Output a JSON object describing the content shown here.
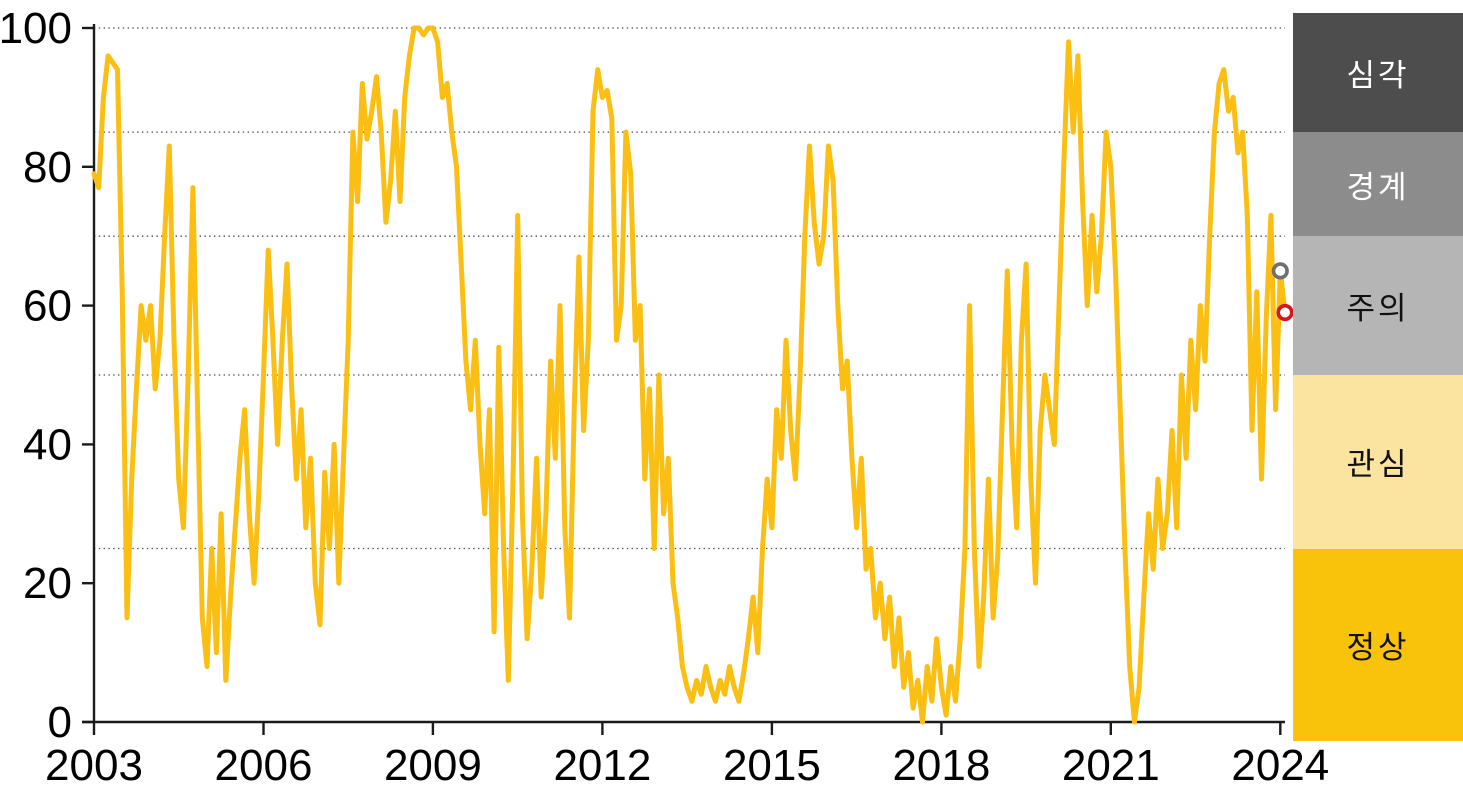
{
  "chart_data": {
    "type": "line",
    "title": "",
    "xlabel": "",
    "ylabel": "",
    "x_start_year": 2003,
    "points_per_year": 12,
    "ylim": [
      0,
      100
    ],
    "y_tick_labels": [
      "0",
      "20",
      "40",
      "60",
      "80",
      "100"
    ],
    "y_tick_values": [
      0,
      20,
      40,
      60,
      80,
      100
    ],
    "x_tick_labels": [
      "2003",
      "2006",
      "2009",
      "2012",
      "2015",
      "2018",
      "2021",
      "2024"
    ],
    "x_tick_years": [
      2003,
      2006,
      2009,
      2012,
      2015,
      2018,
      2021,
      2024
    ],
    "gridlines_at": [
      25,
      50,
      70,
      85,
      100
    ],
    "grid_style": "dotted",
    "legend_position": "right-band",
    "series": [
      {
        "name": "risk-index",
        "color": "#FBBE12",
        "values": [
          79,
          77,
          90,
          96,
          95,
          94,
          62,
          15,
          35,
          48,
          60,
          55,
          60,
          48,
          55,
          70,
          83,
          55,
          35,
          28,
          50,
          77,
          45,
          15,
          8,
          25,
          10,
          30,
          6,
          18,
          28,
          38,
          45,
          30,
          20,
          33,
          50,
          68,
          55,
          40,
          55,
          66,
          48,
          35,
          45,
          28,
          38,
          20,
          14,
          36,
          25,
          40,
          20,
          38,
          55,
          85,
          75,
          92,
          84,
          88,
          93,
          85,
          72,
          78,
          88,
          75,
          90,
          96,
          100,
          100,
          99,
          100,
          100,
          98,
          90,
          92,
          85,
          80,
          66,
          52,
          45,
          55,
          40,
          30,
          45,
          13,
          54,
          25,
          6,
          35,
          73,
          30,
          12,
          22,
          38,
          18,
          30,
          52,
          38,
          60,
          28,
          15,
          45,
          67,
          42,
          55,
          88,
          94,
          90,
          91,
          87,
          55,
          60,
          85,
          79,
          55,
          60,
          35,
          48,
          25,
          50,
          30,
          38,
          20,
          15,
          8,
          5,
          3,
          6,
          4,
          8,
          5,
          3,
          6,
          4,
          8,
          5,
          3,
          7,
          12,
          18,
          10,
          25,
          35,
          28,
          45,
          38,
          55,
          42,
          35,
          50,
          70,
          83,
          72,
          66,
          70,
          83,
          78,
          60,
          48,
          52,
          38,
          28,
          38,
          22,
          25,
          15,
          20,
          12,
          18,
          8,
          15,
          5,
          10,
          2,
          6,
          0,
          8,
          3,
          12,
          5,
          1,
          8,
          3,
          12,
          25,
          60,
          25,
          8,
          18,
          35,
          15,
          24,
          45,
          65,
          40,
          28,
          55,
          66,
          35,
          20,
          42,
          50,
          45,
          40,
          60,
          80,
          98,
          85,
          96,
          75,
          60,
          73,
          62,
          70,
          85,
          80,
          65,
          45,
          25,
          8,
          0,
          5,
          18,
          30,
          22,
          35,
          25,
          30,
          42,
          28,
          50,
          38,
          55,
          45,
          60,
          52,
          70,
          85,
          92,
          94,
          88,
          90,
          82,
          85,
          73,
          42,
          62,
          35,
          58,
          73,
          45,
          65,
          59
        ]
      }
    ],
    "markers": [
      {
        "name": "prior-value-marker",
        "index": 252,
        "value": 65,
        "color": "#6F6F6F"
      },
      {
        "name": "latest-value-marker",
        "index": 253,
        "value": 59,
        "color": "#D5171E"
      }
    ],
    "zones": [
      {
        "label": "심각",
        "from": 85,
        "to": 100,
        "color": "#4D4D4D",
        "text_color": "#FFFFFF"
      },
      {
        "label": "경계",
        "from": 70,
        "to": 85,
        "color": "#8C8C8C",
        "text_color": "#FFFFFF"
      },
      {
        "label": "주의",
        "from": 50,
        "to": 70,
        "color": "#B5B5B5",
        "text_color": "#111111"
      },
      {
        "label": "관심",
        "from": 25,
        "to": 50,
        "color": "#FBE3A0",
        "text_color": "#111111"
      },
      {
        "label": "정상",
        "from": 0,
        "to": 25,
        "color": "#F9C30B",
        "text_color": "#111111"
      }
    ],
    "axis_color": "#1A1A1A",
    "gridline_color": "#4A4A4A"
  }
}
